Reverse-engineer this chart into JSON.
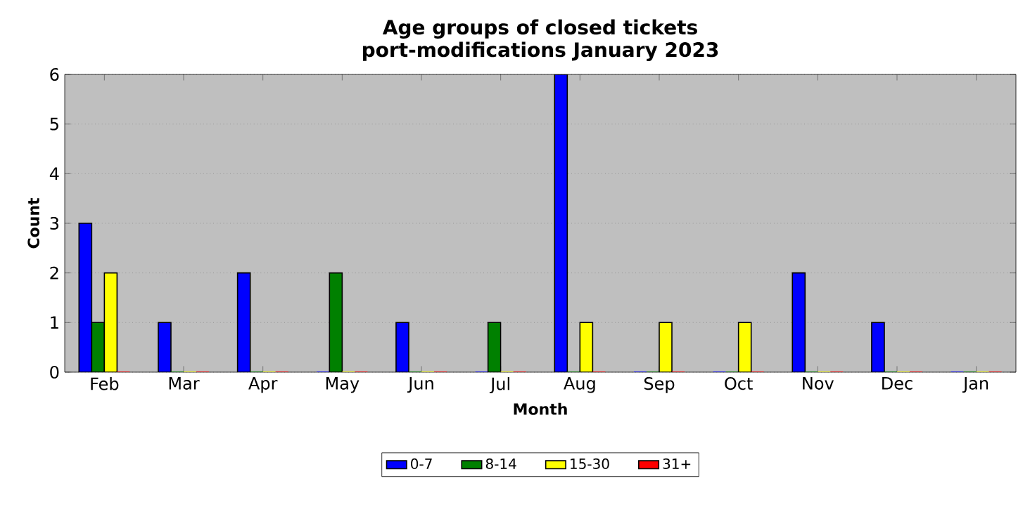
{
  "chart_data": {
    "type": "bar",
    "title": "Age groups of closed tickets",
    "subtitle": "port-modifications January 2023",
    "xlabel": "Month",
    "ylabel": "Count",
    "categories": [
      "Feb",
      "Mar",
      "Apr",
      "May",
      "Jun",
      "Jul",
      "Aug",
      "Sep",
      "Oct",
      "Nov",
      "Dec",
      "Jan"
    ],
    "series": [
      {
        "name": "0-7",
        "color": "#0000ff",
        "values": [
          3,
          1,
          2,
          0,
          1,
          0,
          6,
          0,
          0,
          2,
          1,
          0
        ]
      },
      {
        "name": "8-14",
        "color": "#008000",
        "values": [
          1,
          0,
          0,
          2,
          0,
          1,
          0,
          0,
          0,
          0,
          0,
          0
        ]
      },
      {
        "name": "15-30",
        "color": "#ffff00",
        "values": [
          2,
          0,
          0,
          0,
          0,
          0,
          1,
          1,
          1,
          0,
          0,
          0
        ]
      },
      {
        "name": "31+",
        "color": "#ff0000",
        "values": [
          0,
          0,
          0,
          0,
          0,
          0,
          0,
          0,
          0,
          0,
          0,
          0
        ]
      }
    ],
    "ylim": [
      0,
      6
    ],
    "yticks": [
      0,
      1,
      2,
      3,
      4,
      5,
      6
    ],
    "grid": "y",
    "legend": "bottom"
  }
}
